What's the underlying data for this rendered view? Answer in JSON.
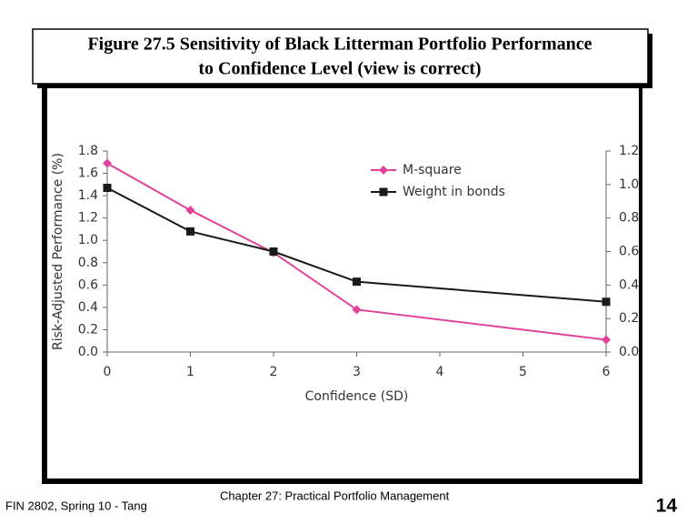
{
  "slide": {
    "title": [
      "Figure 27.5 Sensitivity of Black Litterman Portfolio Performance",
      "to Confidence Level (view is correct)"
    ],
    "footer_left": "FIN 2802, Spring 10 - Tang",
    "footer_center": "Chapter 27: Practical Portfolio Management",
    "page_number": "14"
  },
  "chart_data": {
    "type": "line",
    "x_label": "Confidence (SD)",
    "y_label": "Risk-Adjusted Performance (%)",
    "x": [
      0,
      1,
      2,
      3,
      6
    ],
    "xlim": [
      0,
      6
    ],
    "xticks": [
      0,
      1,
      2,
      3,
      4,
      5,
      6
    ],
    "ylim": [
      0,
      1.8
    ],
    "yticks": [
      {
        "value": 0,
        "label": "0.0"
      },
      0.2,
      0.4,
      0.6,
      0.8,
      {
        "value": 1,
        "label": "1.0"
      },
      1.2,
      1.4,
      1.6,
      1.8
    ],
    "y2lim": [
      0,
      1.2
    ],
    "y2ticks": [
      {
        "value": 0,
        "label": "0.0"
      },
      0.2,
      0.4,
      0.6,
      0.8,
      {
        "value": 1,
        "label": "1.0"
      },
      1.2
    ],
    "grid": false,
    "series": [
      {
        "name": "M-square",
        "color": "#e0449a",
        "marker": "diamond",
        "values": [
          1.69,
          1.27,
          0.89,
          0.38,
          0.11
        ]
      },
      {
        "name": "Weight in bonds",
        "color": "#1a1a1a",
        "marker": "square",
        "axis": "y2",
        "values": [
          0.98,
          0.72,
          0.6,
          0.42,
          0.3
        ]
      }
    ]
  }
}
